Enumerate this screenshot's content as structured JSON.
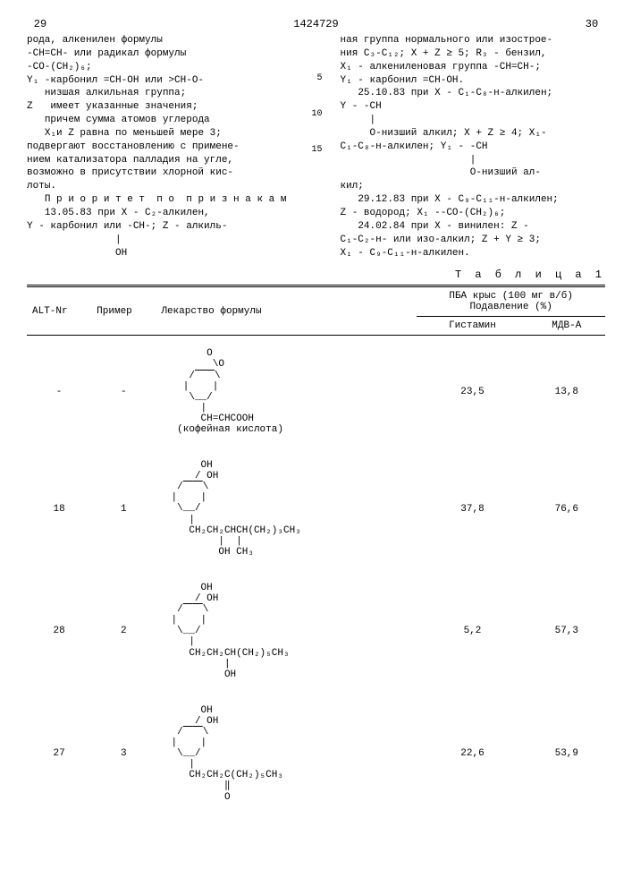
{
  "header": {
    "page_left": "29",
    "doc_number": "1424729",
    "page_right": "30"
  },
  "body_left": "рода, алкенилен формулы\n-СН=СН- или радикал формулы\n-СО-(СН₂)₆;\nY₁ -карбонил =СН-ОН или >СН-О-\n   низшая алкильная группа;\nZ   имеет указанные значения;\n   причем сумма атомов углерода\n   X₁и Z равна по меньшей мере 3;\nподвергают восстановлению с примене-\nнием катализатора палладия на угле,\nвозможно в присутствии хлорной кис-\nлоты.\n   П р и о р и т е т  п о  п р и з н а к а м\n   13.05.83 при X - С₂-алкилен,\nY - карбонил или -СН-; Z - алкиль-\n               |\n               ОН",
  "body_right": "ная группа нормального или изострое-\nния С₃-С₁₂; X + Z ≥ 5; R₃ - бензил,\nX₁ - алкениленовая группа -СН=СН-;\nY₁ - карбонил =СН-ОН.\n   25.10.83 при X - С₁-С₈-н-алкилен;\nY - -СН\n     |\n     О-низший алкил; X + Z ≥ 4; X₁-\nС₁-С₈-н-алкилен; Y₁ - -СН\n                      |\n                      О-низший ал-\nкил;\n   29.12.83 при X - С₉-С₁₁-н-алкилен;\nZ - водород; X₁ --СО-(СН₂)₆;\n   24.02.84 при X - винилен: Z -\nС₁-С₂-н- или изо-алкил; Z + Y ≥ 3;\nX₁ - С₉-С₁₁-н-алкилен.",
  "line_numbers": [
    "5",
    "10",
    "15"
  ],
  "table_title": "Т а б л и ц а 1",
  "table": {
    "columns": {
      "alt": "ALT-Nr",
      "example": "Пример",
      "drug": "Лекарство формулы",
      "pba_header": "ПБА крыс (100 мг в/б)\nПодавление (%)",
      "hist": "Гистамин",
      "mdv": "МДВ-А"
    },
    "rows": [
      {
        "alt": "-",
        "example": "-",
        "formula": "        O\n         \\O\n     /⎺⎺\\\n    |    |\n     \\__/\n       |\n       CH=CHCOOH\n   (кофейная кислота)",
        "hist": "23,5",
        "mdv": "13,8"
      },
      {
        "alt": "18",
        "example": "1",
        "formula": "       OH\n      / OH\n   /⎺⎺\\\n  |    |\n   \\__/\n     |\n     CH₂CH₂CHCH(CH₂)₃CH₃\n          |  |\n          OH CH₃",
        "hist": "37,8",
        "mdv": "76,6"
      },
      {
        "alt": "28",
        "example": "2",
        "formula": "       OH\n      / OH\n   /⎺⎺\\\n  |    |\n   \\__/\n     |\n     CH₂CH₂CH(CH₂)₅CH₃\n           |\n           OH",
        "hist": "5,2",
        "mdv": "57,3"
      },
      {
        "alt": "27",
        "example": "3",
        "formula": "       OH\n      / OH\n   /⎺⎺\\\n  |    |\n   \\__/\n     |\n     CH₂CH₂C(CH₂)₅CH₃\n           ‖\n           O",
        "hist": "22,6",
        "mdv": "53,9"
      }
    ]
  }
}
